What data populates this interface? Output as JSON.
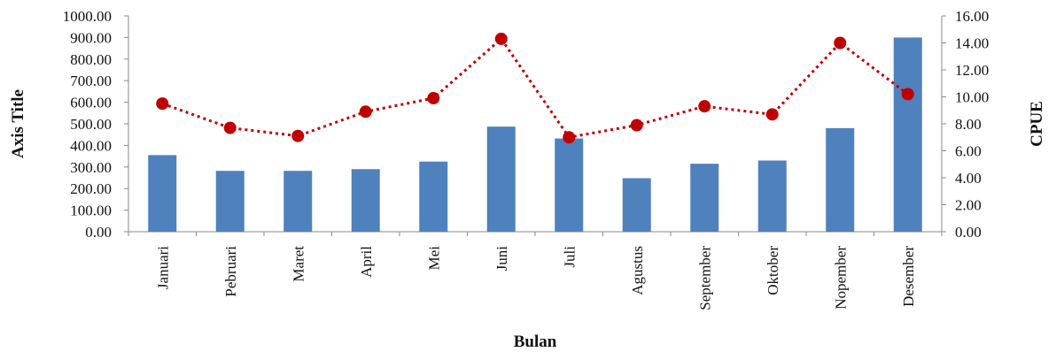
{
  "chart_data": {
    "type": "bar",
    "combo": "bar-line-dual-axis",
    "categories": [
      "Januari",
      "Pebruari",
      "Maret",
      "April",
      "Mei",
      "Juni",
      "Juli",
      "Agustus",
      "September",
      "Oktober",
      "Nopember",
      "Desember"
    ],
    "series": [
      {
        "type": "bar",
        "axis": "left",
        "color": "#4F81BD",
        "values": [
          355,
          282,
          282,
          290,
          325,
          487,
          432,
          248,
          315,
          330,
          480,
          900
        ]
      },
      {
        "type": "line",
        "axis": "right",
        "color": "#C00000",
        "line_style": "dotted",
        "marker": "circle",
        "values": [
          9.5,
          7.7,
          7.1,
          8.9,
          9.9,
          14.3,
          7.0,
          7.9,
          9.3,
          8.7,
          14.0,
          10.2
        ]
      }
    ],
    "xlabel": "Bulan",
    "ylabel": "Axis Title",
    "y2label": "CPUE",
    "ylim": [
      0,
      1000
    ],
    "y2lim": [
      0,
      16
    ],
    "yticks": [
      "0.00",
      "100.00",
      "200.00",
      "300.00",
      "400.00",
      "500.00",
      "600.00",
      "700.00",
      "800.00",
      "900.00",
      "1000.00"
    ],
    "y2ticks": [
      "0.00",
      "2.00",
      "4.00",
      "6.00",
      "8.00",
      "10.00",
      "12.00",
      "14.00",
      "16.00"
    ],
    "grid": false,
    "legend": "none"
  }
}
